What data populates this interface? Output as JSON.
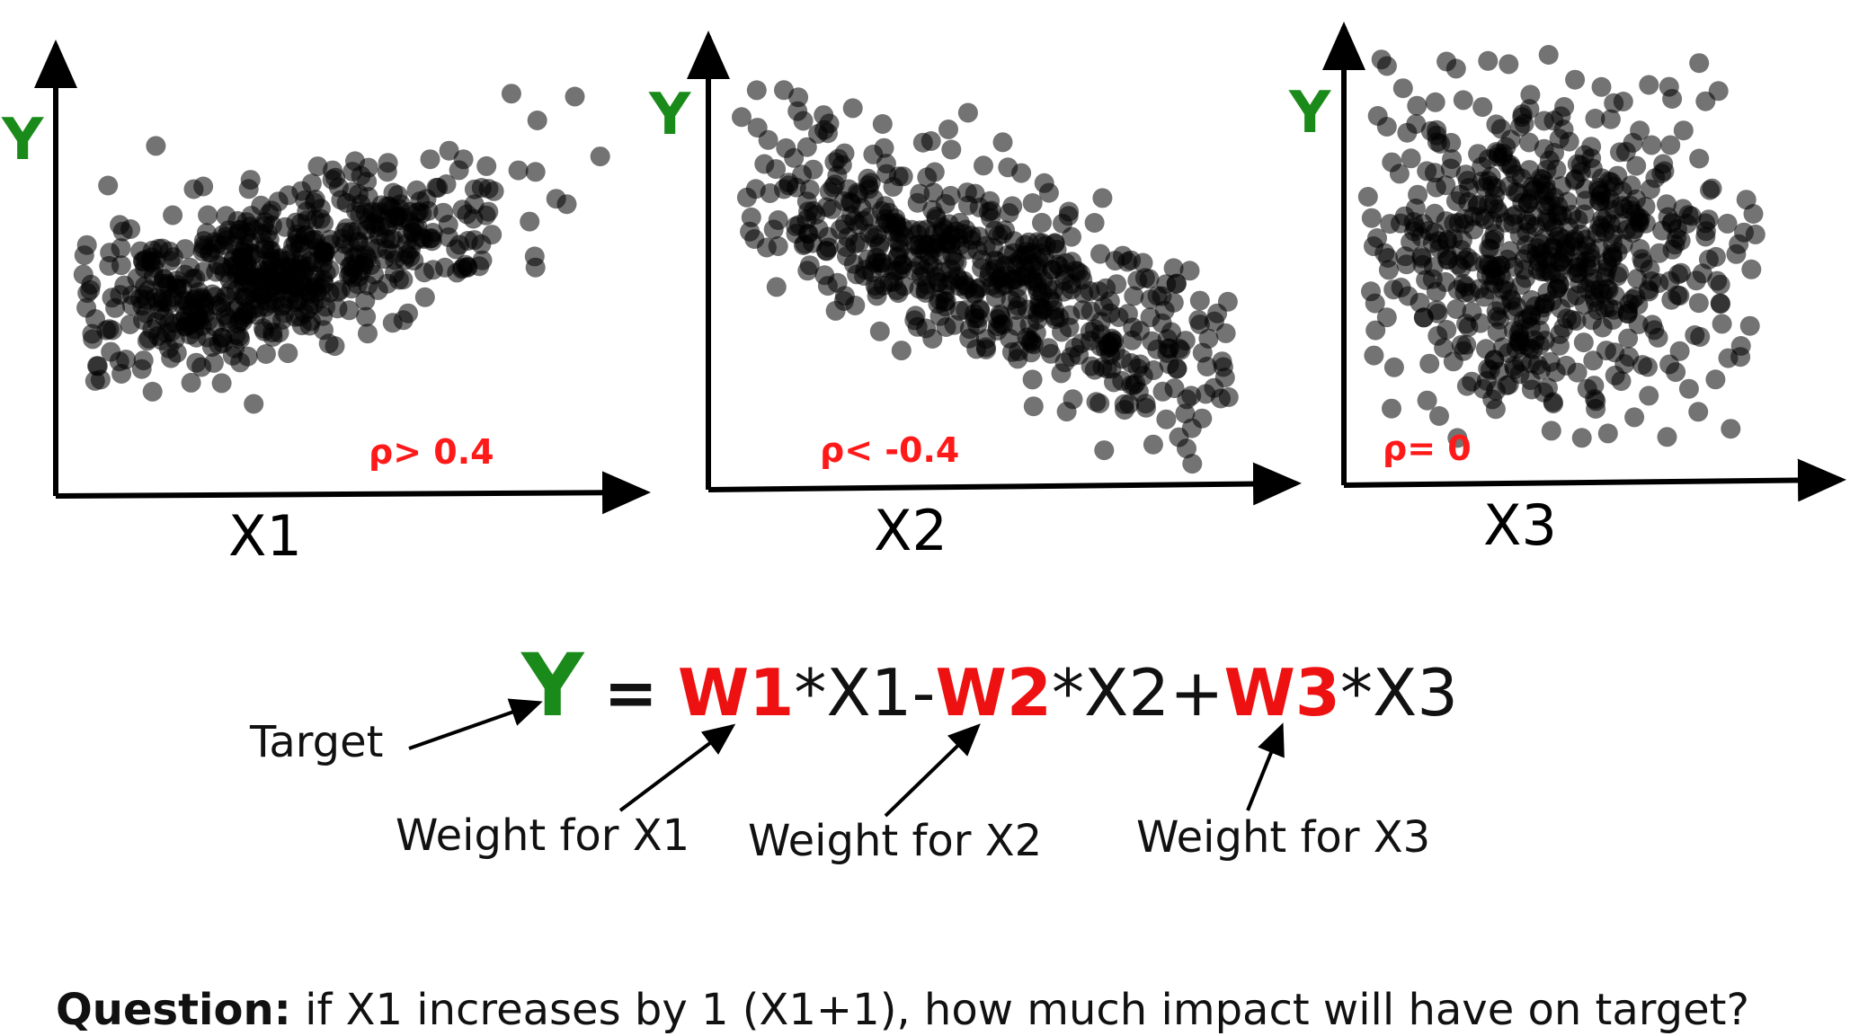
{
  "panels": [
    {
      "ylabel": "Y",
      "xlabel": "X1",
      "rho": "ρ> 0.4"
    },
    {
      "ylabel": "Y",
      "xlabel": "X2",
      "rho": "ρ< -0.4"
    },
    {
      "ylabel": "Y",
      "xlabel": "X3",
      "rho": "ρ= 0"
    }
  ],
  "equation": {
    "target": "Y",
    "equals": "=",
    "w1": "W1",
    "term1": "*X1-",
    "w2": "W2",
    "term2": "*X2+",
    "w3": "W3",
    "term3": "*X3"
  },
  "annotations": {
    "target": "Target",
    "weight1": "Weight for X1",
    "weight2": "Weight for X2",
    "weight3": "Weight for X3"
  },
  "question": {
    "label": "Question:",
    "text": " if X1 increases by 1 (X1+1), how much impact will have on target?"
  },
  "colors": {
    "target_green": "#1a8a1a",
    "weight_red": "#ee1111",
    "rho_red": "#ff1a1a",
    "points": "#000000"
  }
}
